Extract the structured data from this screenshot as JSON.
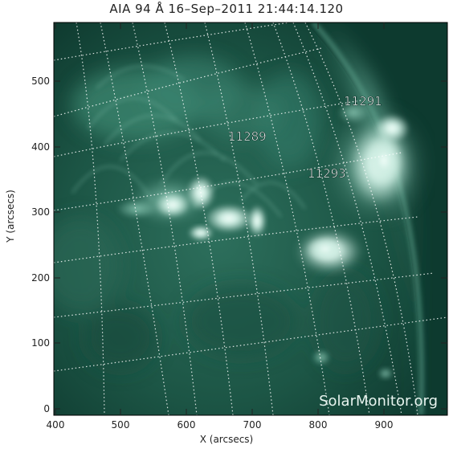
{
  "title": "AIA 94 Å 16–Sep–2011 21:44:14.120",
  "xlabel": "X (arcsecs)",
  "ylabel": "Y (arcsecs)",
  "xticks": [
    "400",
    "500",
    "600",
    "700",
    "800",
    "900"
  ],
  "yticks": [
    "0",
    "100",
    "200",
    "300",
    "400",
    "500"
  ],
  "regions": [
    "11291",
    "11289",
    "11293"
  ],
  "watermark": "SolarMonitor.org",
  "colors": {
    "background": "#0a3327",
    "emission": "#d8f2ea",
    "grid": "#ffffff"
  }
}
